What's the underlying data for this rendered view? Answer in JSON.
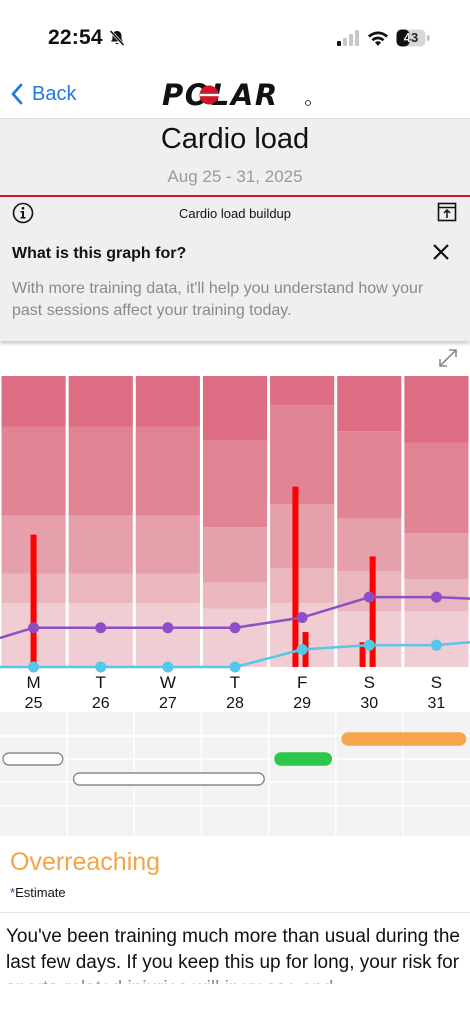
{
  "status_bar": {
    "time": "22:54",
    "battery": "43"
  },
  "nav": {
    "back_label": "Back",
    "logo_text": "POLAR"
  },
  "header": {
    "title": "Cardio load",
    "date_range": "Aug 25 - 31, 2025"
  },
  "graph_header": {
    "label": "Cardio load buildup"
  },
  "info_card": {
    "question": "What is this graph for?",
    "body": "With more training data, it'll help you understand how your past sessions affect your training today."
  },
  "chart_data": {
    "type": "bar",
    "days": [
      {
        "letter": "M",
        "date": "25"
      },
      {
        "letter": "T",
        "date": "26"
      },
      {
        "letter": "W",
        "date": "27"
      },
      {
        "letter": "T",
        "date": "28"
      },
      {
        "letter": "F",
        "date": "29"
      },
      {
        "letter": "S",
        "date": "30"
      },
      {
        "letter": "S",
        "date": "31"
      }
    ],
    "bands": [
      [
        0.175,
        0.48,
        0.68,
        0.78
      ],
      [
        0.175,
        0.48,
        0.68,
        0.78
      ],
      [
        0.175,
        0.48,
        0.68,
        0.78
      ],
      [
        0.22,
        0.52,
        0.71,
        0.8
      ],
      [
        0.1,
        0.44,
        0.66,
        0.78
      ],
      [
        0.19,
        0.49,
        0.67,
        0.81
      ],
      [
        0.23,
        0.54,
        0.7,
        0.81
      ]
    ],
    "bars": [
      {
        "day": 0,
        "offset": 0.5,
        "value": 0.455
      },
      {
        "day": 4,
        "offset": 0.4,
        "value": 0.62
      },
      {
        "day": 4,
        "offset": 0.55,
        "value": 0.12
      },
      {
        "day": 5,
        "offset": 0.4,
        "value": 0.085
      },
      {
        "day": 5,
        "offset": 0.55,
        "value": 0.38
      }
    ],
    "purple_series": [
      0.135,
      0.135,
      0.135,
      0.135,
      0.17,
      0.24,
      0.24
    ],
    "blue_series": [
      0.0,
      0.0,
      0.0,
      0.0,
      0.06,
      0.075,
      0.075
    ],
    "colors": {
      "band_top": "#dc6d82",
      "band_2": "#e08493",
      "band_3": "#e6a0ab",
      "band_4": "#ebb7bf",
      "band_5": "#f0cdd3",
      "bar": "#ff0000",
      "purple": "#8c4fc5",
      "blue": "#55c7e8"
    }
  },
  "timeline": {
    "pills": [
      {
        "color": "#ffffff",
        "border": "#8a8a8a",
        "start": 0.0,
        "end": 0.95,
        "row": 0
      },
      {
        "color": "#ffffff",
        "border": "#8a8a8a",
        "start": 1.05,
        "end": 3.95,
        "row": 1
      },
      {
        "color": "#2dc749",
        "border": "#2dc749",
        "start": 4.05,
        "end": 4.95,
        "row": 0
      },
      {
        "color": "#f6a54c",
        "border": "#f6a54c",
        "start": 5.05,
        "end": 6.95,
        "row": -1
      }
    ]
  },
  "status": {
    "label": "Overreaching",
    "estimate": "Estimate",
    "estimate_star": "*",
    "color": "#f4a445"
  },
  "description": "You've been training much more than usual during the last few days. If you keep this up for long, your risk for sports-related injuries will increase and"
}
